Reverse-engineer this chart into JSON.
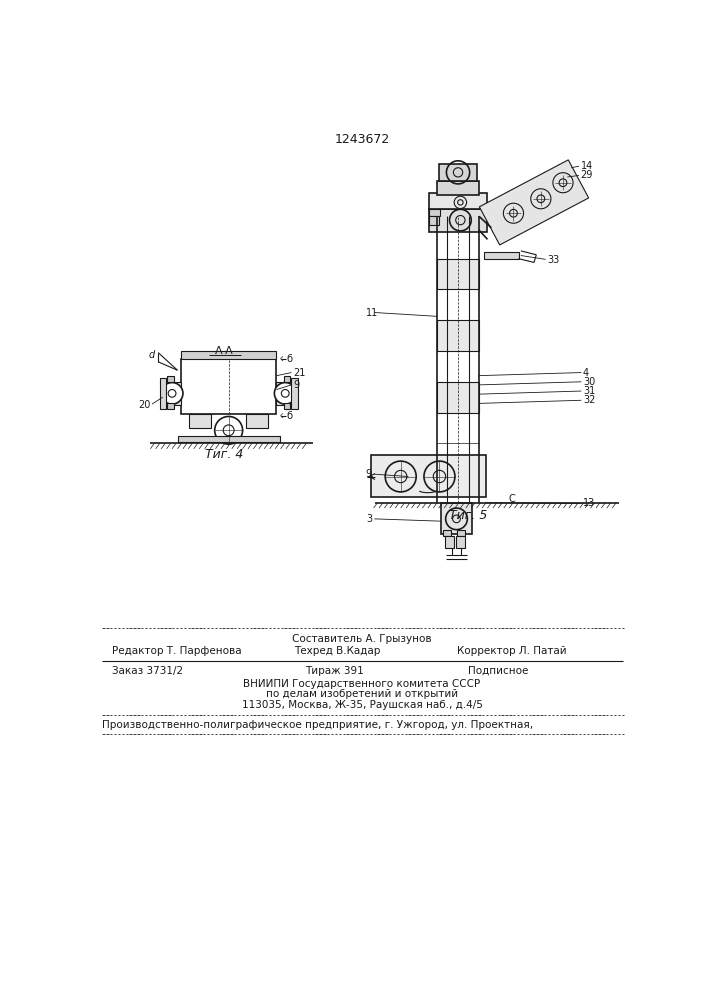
{
  "patent_number": "1243672",
  "bg_color": "#ffffff",
  "line_color": "#1a1a1a",
  "fig4_label": "Τиг. 4",
  "fig5_label": "Τиг. 5",
  "footer": {
    "sestavitel": "Составитель А. Грызунов",
    "redaktor": "Редактор Т. Парфенова",
    "tehred": "Техред В.Кадар",
    "korrektor": "Корректор Л. Патай",
    "zakaz": "Заказ 3731/2",
    "tirazh": "Тираж 391",
    "podpisnoe": "Подписное",
    "vniipI": "ВНИИПИ Государственного комитета СССР",
    "poDel": "по делам изобретений и открытий",
    "address": "113035, Москва, Ж-35, Раушская наб., д.4/5",
    "factory": "Производственно-полиграфическое предприятие, г. Ужгород, ул. Проектная,"
  }
}
